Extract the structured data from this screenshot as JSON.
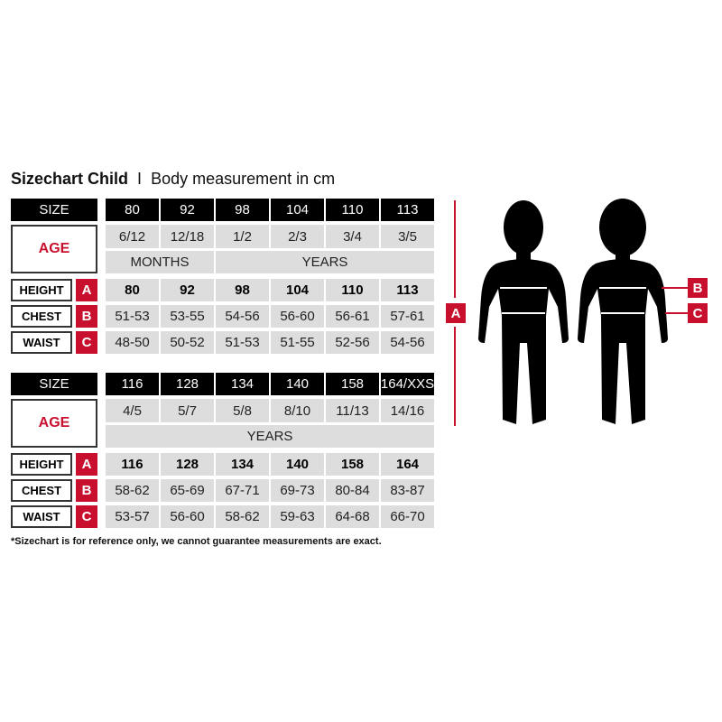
{
  "title": {
    "main": "Sizechart Child",
    "separator": "I",
    "sub": "Body measurement in cm"
  },
  "labels": {
    "size": "SIZE",
    "age": "AGE",
    "height": "HEIGHT",
    "chest": "CHEST",
    "waist": "WAIST",
    "a": "A",
    "b": "B",
    "c": "C"
  },
  "tables": [
    {
      "sizes": [
        "80",
        "92",
        "98",
        "104",
        "110",
        "113"
      ],
      "ages": [
        "6/12",
        "12/18",
        "1/2",
        "2/3",
        "3/4",
        "3/5"
      ],
      "age_units": [
        {
          "label": "MONTHS",
          "span": 2
        },
        {
          "label": "YEARS",
          "span": 4
        }
      ],
      "height": [
        "80",
        "92",
        "98",
        "104",
        "110",
        "113"
      ],
      "chest": [
        "51-53",
        "53-55",
        "54-56",
        "56-60",
        "56-61",
        "57-61"
      ],
      "waist": [
        "48-50",
        "50-52",
        "51-53",
        "51-55",
        "52-56",
        "54-56"
      ]
    },
    {
      "sizes": [
        "116",
        "128",
        "134",
        "140",
        "158",
        "164/XXS"
      ],
      "ages": [
        "4/5",
        "5/7",
        "5/8",
        "8/10",
        "11/13",
        "14/16"
      ],
      "age_units": [
        {
          "label": "YEARS",
          "span": 6
        }
      ],
      "height": [
        "116",
        "128",
        "134",
        "140",
        "158",
        "164"
      ],
      "chest": [
        "58-62",
        "65-69",
        "67-71",
        "69-73",
        "80-84",
        "83-87"
      ],
      "waist": [
        "53-57",
        "56-60",
        "58-62",
        "59-63",
        "64-68",
        "66-70"
      ]
    }
  ],
  "footnote": "*Sizechart is for reference only, we cannot guarantee measurements are exact.",
  "colors": {
    "accent": "#c8102e",
    "header": "#000000",
    "cell": "#dddddd"
  }
}
